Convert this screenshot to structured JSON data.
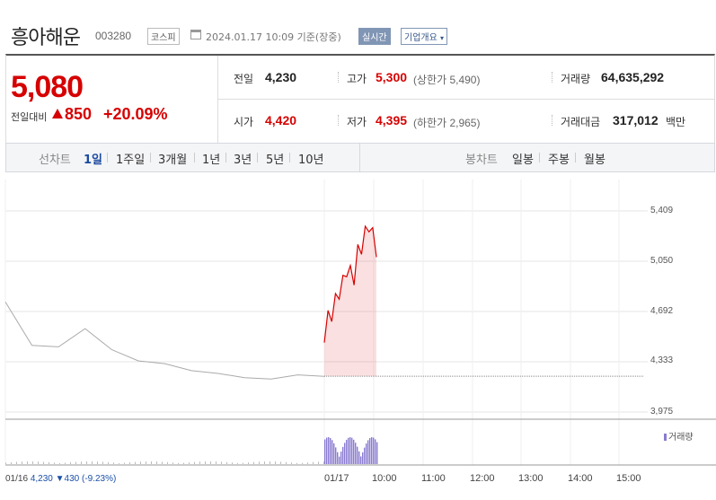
{
  "header": {
    "name": "흥아해운",
    "code": "003280",
    "market": "코스피",
    "datetime": "2024.01.17 10:09 기준(장중)",
    "realtime_label": "실시간",
    "company_label": "기업개요",
    "company_caret": "▾"
  },
  "quote": {
    "price": "5,080",
    "change_label": "전일대비",
    "change_value": "850",
    "change_pct": "+20.09%",
    "prev_label": "전일",
    "prev_value": "4,230",
    "open_label": "시가",
    "open_value": "4,420",
    "high_label": "고가",
    "high_value": "5,300",
    "upper_limit": "(상한가 5,490)",
    "low_label": "저가",
    "low_value": "4,395",
    "lower_limit": "(하한가 2,965)",
    "volume_label": "거래량",
    "volume_value": "64,635,292",
    "amount_label": "거래대금",
    "amount_value": "317,012",
    "amount_unit": "백만"
  },
  "tabs": {
    "line_head": "선차트",
    "line_items": [
      "1일",
      "1주일",
      "3개월",
      "1년",
      "3년",
      "5년",
      "10년"
    ],
    "selected": "1일",
    "candle_head": "봉차트",
    "candle_items": [
      "일봉",
      "주봉",
      "월봉"
    ]
  },
  "footer": {
    "date": "01/16",
    "close": "4,230",
    "down_arrow": "▼",
    "change": "430",
    "pct": "(-9.23%)"
  },
  "colors": {
    "up": "#d60000",
    "down": "#1a4fa8",
    "prev_line": "#aaaaaa",
    "volume": "#8a7bd0",
    "selected_tab": "#1b4aa0"
  },
  "chart_data": {
    "type": "line",
    "y_ticks": [
      "5,409",
      "5,050",
      "4,692",
      "4,333",
      "3,975"
    ],
    "ylim": [
      3975,
      5409
    ],
    "x_ticks": [
      "01/16",
      "01/17",
      "10:00",
      "11:00",
      "12:00",
      "13:00",
      "14:00",
      "15:00"
    ],
    "reference_value": 4230,
    "volume_legend": "거래량",
    "series": [
      {
        "x": [
          "01/16 09:00",
          "01/16 09:10",
          "01/16 09:20",
          "01/16 09:40",
          "01/16 10:00",
          "01/16 10:30",
          "01/16 11:00",
          "01/16 12:00",
          "01/16 13:00",
          "01/16 14:00",
          "01/16 14:30",
          "01/16 15:00",
          "01/16 15:30"
        ],
        "values": [
          4760,
          4450,
          4440,
          4570,
          4420,
          4340,
          4320,
          4270,
          4250,
          4220,
          4210,
          4240,
          4230
        ]
      },
      {
        "x": [
          "01/17 09:00",
          "01/17 09:05",
          "01/17 09:10",
          "01/17 09:15",
          "01/17 09:20",
          "01/17 09:25",
          "01/17 09:30",
          "01/17 09:35",
          "01/17 09:40",
          "01/17 09:45",
          "01/17 09:50",
          "01/17 09:55",
          "01/17 10:00",
          "01/17 10:05",
          "01/17 10:09"
        ],
        "values": [
          4470,
          4700,
          4620,
          4820,
          4780,
          4950,
          4940,
          5020,
          4880,
          5170,
          5100,
          5300,
          5260,
          5290,
          5080
        ]
      }
    ]
  }
}
